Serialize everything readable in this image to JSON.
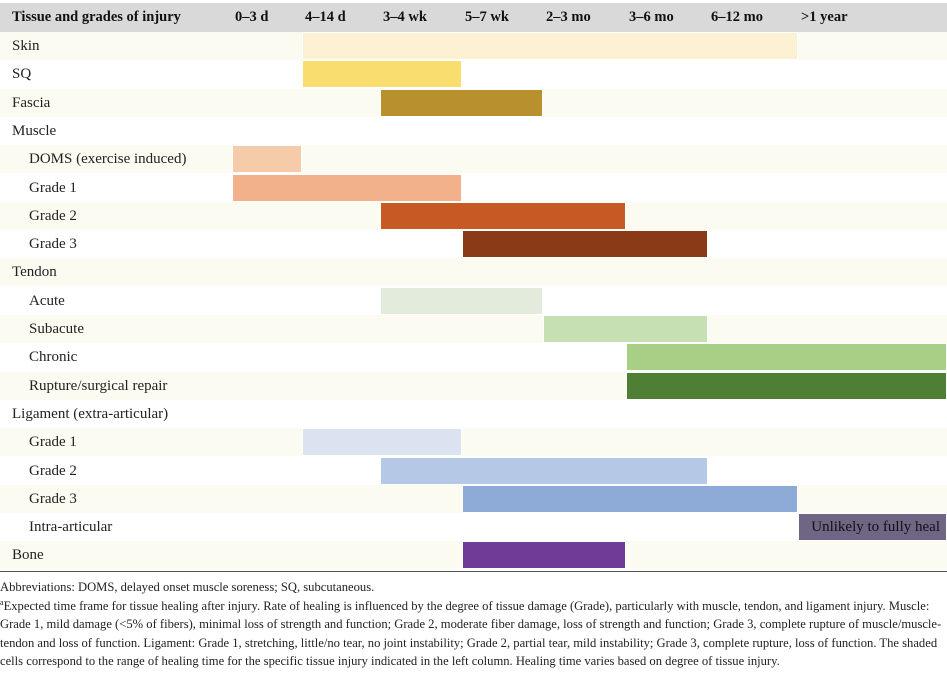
{
  "table": {
    "header": [
      "Tissue and grades of injury",
      "0–3 d",
      "4–14 d",
      "3–4 wk",
      "5–7 wk",
      "2–3 mo",
      "3–6 mo",
      "6–12 mo",
      ">1 year"
    ],
    "rows": [
      {
        "label": "Skin",
        "indent": false,
        "start": 2,
        "end": 7,
        "color": "#fdf1d4"
      },
      {
        "label": "SQ",
        "indent": false,
        "start": 2,
        "end": 3,
        "color": "#f9dd6e"
      },
      {
        "label": "Fascia",
        "indent": false,
        "start": 3,
        "end": 4,
        "color": "#b8902e"
      },
      {
        "label": "Muscle",
        "indent": false
      },
      {
        "label": "DOMS (exercise induced)",
        "indent": true,
        "start": 1,
        "end": 1,
        "color": "#f6cbaa"
      },
      {
        "label": "Grade 1",
        "indent": true,
        "start": 1,
        "end": 3,
        "color": "#f2b18b"
      },
      {
        "label": "Grade 2",
        "indent": true,
        "start": 3,
        "end": 5,
        "color": "#c75a24"
      },
      {
        "label": "Grade 3",
        "indent": true,
        "start": 4,
        "end": 6,
        "color": "#8a3a17"
      },
      {
        "label": "Tendon",
        "indent": false
      },
      {
        "label": "Acute",
        "indent": true,
        "start": 3,
        "end": 4,
        "color": "#e3ecdc"
      },
      {
        "label": "Subacute",
        "indent": true,
        "start": 5,
        "end": 6,
        "color": "#c6dfb3"
      },
      {
        "label": "Chronic",
        "indent": true,
        "start": 6,
        "end": 8,
        "color": "#a8cf86"
      },
      {
        "label": "Rupture/surgical repair",
        "indent": true,
        "start": 6,
        "end": 8,
        "color": "#4f7f35"
      },
      {
        "label": "Ligament (extra-articular)",
        "indent": false
      },
      {
        "label": "Grade 1",
        "indent": true,
        "start": 2,
        "end": 3,
        "color": "#dbe3f1"
      },
      {
        "label": "Grade 2",
        "indent": true,
        "start": 3,
        "end": 6,
        "color": "#b5c8e6"
      },
      {
        "label": "Grade 3",
        "indent": true,
        "start": 4,
        "end": 7,
        "color": "#8eaad7"
      },
      {
        "label": "Intra-articular",
        "indent": true,
        "start": 8,
        "end": 8,
        "color": "#6f6585",
        "text": "Unlikely to fully heal"
      },
      {
        "label": "Bone",
        "indent": false,
        "start": 4,
        "end": 5,
        "color": "#6f3b96"
      }
    ]
  },
  "footnotes": {
    "abbreviations": "Abbreviations: DOMS, delayed onset muscle soreness; SQ, subcutaneous.",
    "note_marker": "a",
    "note": "Expected time frame for tissue healing after injury. Rate of healing is influenced by the degree of tissue damage (Grade), particularly with muscle, tendon, and ligament injury. Muscle: Grade 1, mild damage (<5% of fibers), minimal loss of strength and function; Grade 2, moderate fiber damage, loss of strength and function; Grade 3, complete rupture of muscle/muscle-tendon and loss of function. Ligament: Grade 1, stretching, little/no tear, no joint instability; Grade 2, partial tear, mild instability; Grade 3, complete rupture, loss of function. The shaded cells correspond to the range of healing time for the specific tissue injury indicated in the left column. Healing time varies based on degree of tissue injury."
  }
}
